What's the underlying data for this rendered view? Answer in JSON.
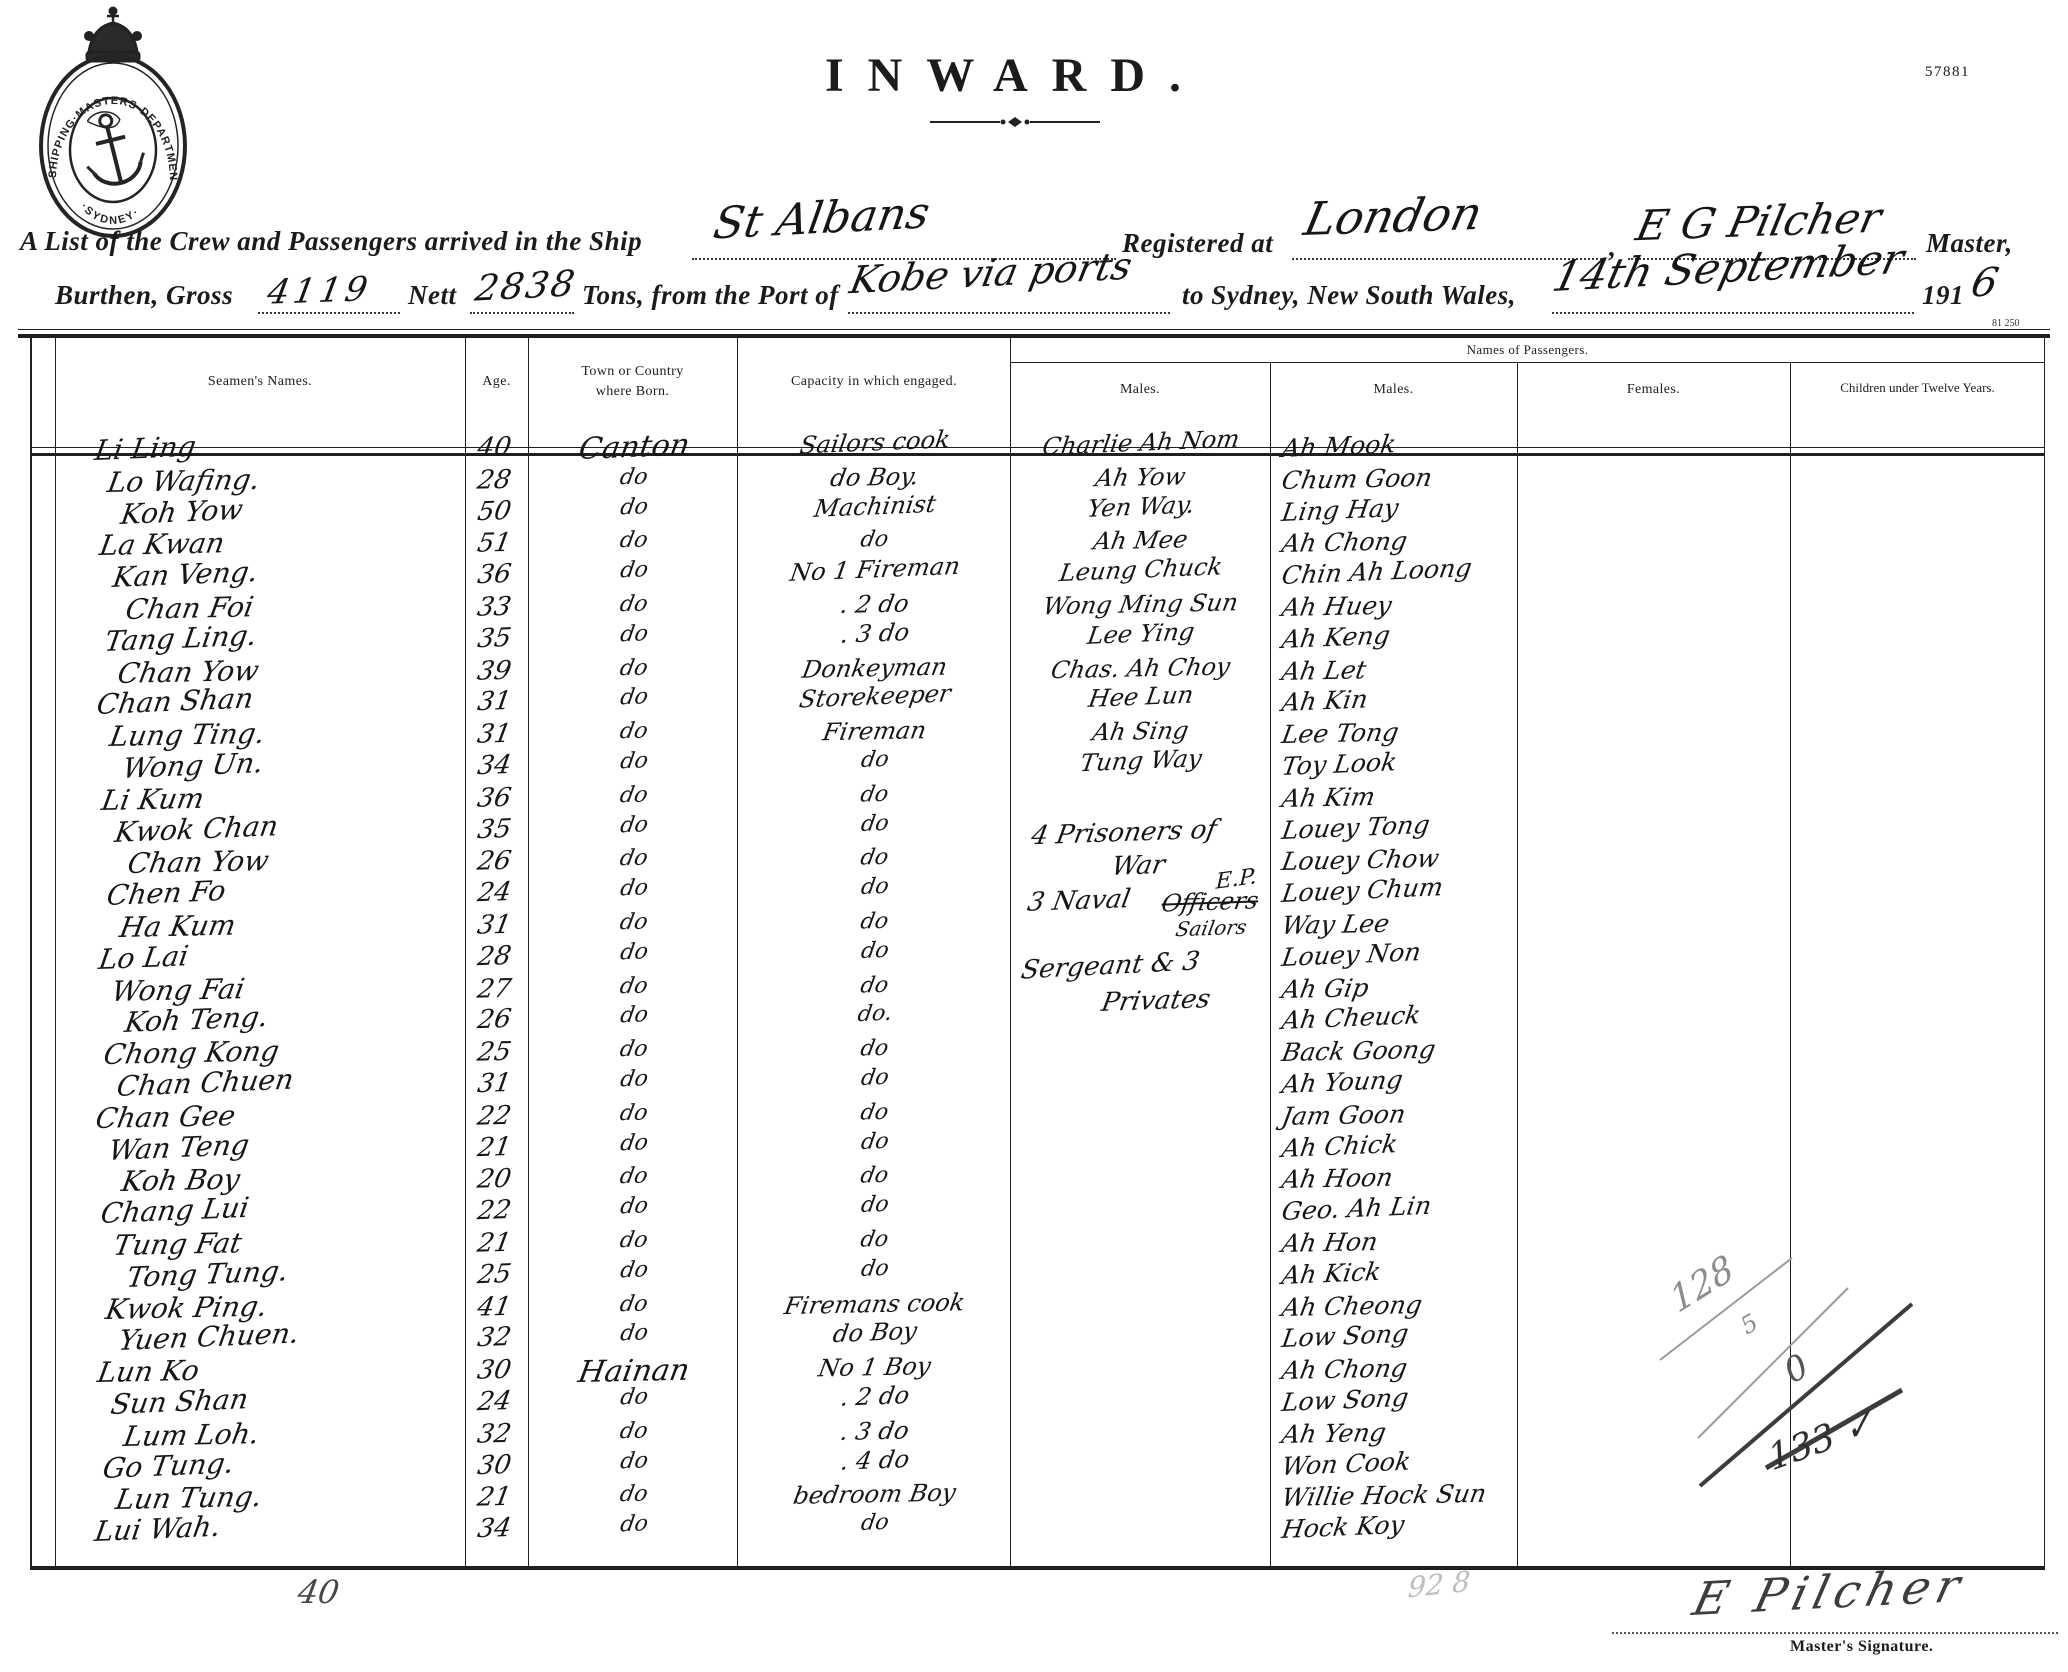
{
  "document": {
    "form_number": "57881",
    "form_code": "81 250",
    "title": "INWARD.",
    "seal": {
      "arc_top": "SHIPPING·MASTERS·DEPARTMENT",
      "arc_bottom": "·SYDNEY·"
    },
    "header": {
      "line1_lead": "A List of the Crew and Passengers arrived in the Ship",
      "ship_name": "St Albans",
      "registered_at_label": "Registered at",
      "registered_at_value": "London",
      "comma": ",",
      "master_name": "E G Pilcher",
      "master_label": "Master,",
      "burthen_label": "Burthen, Gross",
      "gross_tons": "4119",
      "nett_label": "Nett",
      "nett_tons": "2838",
      "tons_from_label": "Tons, from the Port of",
      "port_of_origin": "Kobe via ports",
      "destination_label": "to Sydney, New South Wales,",
      "arrival_date": "14th September",
      "year_printed": "191",
      "year_handwritten": "6"
    }
  },
  "table": {
    "headers": {
      "seamen_names": "Seamen's Names.",
      "age": "Age.",
      "born_l1": "Town or Country",
      "born_l2": "where Born.",
      "capacity": "Capacity in which engaged.",
      "passengers_group": "Names of Passengers.",
      "males1": "Males.",
      "males2": "Males.",
      "females": "Females.",
      "children": "Children under Twelve Years."
    },
    "rows": [
      {
        "name": "Li Ling",
        "age": "40",
        "born": "Canton",
        "capacity": "Sailors cook",
        "male1": "Charlie Ah Nom",
        "male2": "Ah Mook"
      },
      {
        "name": "Lo Wafing.",
        "age": "28",
        "born": "do",
        "capacity": "do Boy.",
        "male1": "Ah Yow",
        "male2": "Chum Goon"
      },
      {
        "name": "Koh Yow",
        "age": "50",
        "born": "do",
        "capacity": "Machinist",
        "male1": "Yen Way.",
        "male2": "Ling Hay"
      },
      {
        "name": "La Kwan",
        "age": "51",
        "born": "do",
        "capacity": "do",
        "male1": "Ah Mee",
        "male2": "Ah Chong"
      },
      {
        "name": "Kan Veng.",
        "age": "36",
        "born": "do",
        "capacity": "No 1 Fireman",
        "male1": "Leung Chuck",
        "male2": "Chin Ah Loong"
      },
      {
        "name": "Chan Foi",
        "age": "33",
        "born": "do",
        "capacity": ". 2    do",
        "male1": "Wong Ming Sun",
        "male2": "Ah Huey"
      },
      {
        "name": "Tang Ling.",
        "age": "35",
        "born": "do",
        "capacity": ". 3    do",
        "male1": "Lee Ying",
        "male2": "Ah Keng"
      },
      {
        "name": "Chan Yow",
        "age": "39",
        "born": "do",
        "capacity": "Donkeyman",
        "male1": "Chas. Ah Choy",
        "male2": "Ah Let"
      },
      {
        "name": "Chan Shan",
        "age": "31",
        "born": "do",
        "capacity": "Storekeeper",
        "male1": "Hee Lun",
        "male2": "Ah Kin"
      },
      {
        "name": "Lung Ting.",
        "age": "31",
        "born": "do",
        "capacity": "Fireman",
        "male1": "Ah Sing",
        "male2": "Lee Tong"
      },
      {
        "name": "Wong Un.",
        "age": "34",
        "born": "do",
        "capacity": "do",
        "male1": "Tung Way",
        "male2": "Toy Look"
      },
      {
        "name": "Li Kum",
        "age": "36",
        "born": "do",
        "capacity": "do",
        "male1": "",
        "male2": "Ah Kim"
      },
      {
        "name": "Kwok Chan",
        "age": "35",
        "born": "do",
        "capacity": "do",
        "male1": "",
        "male2": "Louey Tong"
      },
      {
        "name": "Chan Yow",
        "age": "26",
        "born": "do",
        "capacity": "do",
        "male1": "",
        "male2": "Louey Chow"
      },
      {
        "name": "Chen Fo",
        "age": "24",
        "born": "do",
        "capacity": "do",
        "male1": "",
        "male2": "Louey Chum"
      },
      {
        "name": "Ha Kum",
        "age": "31",
        "born": "do",
        "capacity": "do",
        "male1": "",
        "male2": "Way Lee"
      },
      {
        "name": "Lo Lai",
        "age": "28",
        "born": "do",
        "capacity": "do",
        "male1": "",
        "male2": "Louey Non"
      },
      {
        "name": "Wong Fai",
        "age": "27",
        "born": "do",
        "capacity": "do",
        "male1": "",
        "male2": "Ah Gip"
      },
      {
        "name": "Koh Teng.",
        "age": "26",
        "born": "do",
        "capacity": "do.",
        "male1": "",
        "male2": "Ah Cheuck"
      },
      {
        "name": "Chong Kong",
        "age": "25",
        "born": "do",
        "capacity": "do",
        "male1": "",
        "male2": "Back Goong"
      },
      {
        "name": "Chan Chuen",
        "age": "31",
        "born": "do",
        "capacity": "do",
        "male1": "",
        "male2": "Ah Young"
      },
      {
        "name": "Chan Gee",
        "age": "22",
        "born": "do",
        "capacity": "do",
        "male1": "",
        "male2": "Jam Goon"
      },
      {
        "name": "Wan Teng",
        "age": "21",
        "born": "do",
        "capacity": "do",
        "male1": "",
        "male2": "Ah Chick"
      },
      {
        "name": "Koh Boy",
        "age": "20",
        "born": "do",
        "capacity": "do",
        "male1": "",
        "male2": "Ah Hoon"
      },
      {
        "name": "Chang Lui",
        "age": "22",
        "born": "do",
        "capacity": "do",
        "male1": "",
        "male2": "Geo. Ah Lin"
      },
      {
        "name": "Tung Fat",
        "age": "21",
        "born": "do",
        "capacity": "do",
        "male1": "",
        "male2": "Ah Hon"
      },
      {
        "name": "Tong Tung.",
        "age": "25",
        "born": "do",
        "capacity": "do",
        "male1": "",
        "male2": "Ah Kick"
      },
      {
        "name": "Kwok Ping.",
        "age": "41",
        "born": "do",
        "capacity": "Firemans cook",
        "male1": "",
        "male2": "Ah Cheong"
      },
      {
        "name": "Yuen Chuen.",
        "age": "32",
        "born": "do",
        "capacity": "do  Boy",
        "male1": "",
        "male2": "Low Song"
      },
      {
        "name": "Lun Ko",
        "age": "30",
        "born": "Hainan",
        "capacity": "No 1  Boy",
        "male1": "",
        "male2": "Ah Chong"
      },
      {
        "name": "Sun Shan",
        "age": "24",
        "born": "do",
        "capacity": ". 2    do",
        "male1": "",
        "male2": "Low Song"
      },
      {
        "name": "Lum Loh.",
        "age": "32",
        "born": "do",
        "capacity": ". 3    do",
        "male1": "",
        "male2": "Ah Yeng"
      },
      {
        "name": "Go Tung.",
        "age": "30",
        "born": "do",
        "capacity": ". 4    do",
        "male1": "",
        "male2": "Won Cook"
      },
      {
        "name": "Lun Tung.",
        "age": "21",
        "born": "do",
        "capacity": "bedroom Boy",
        "male1": "",
        "male2": "Willie Hock Sun"
      },
      {
        "name": "Lui Wah.",
        "age": "34",
        "born": "do",
        "capacity": "do",
        "male1": "",
        "male2": "Hock Koy"
      }
    ],
    "passenger_notes": {
      "prisoners_line1": "4  Prisoners of",
      "prisoners_line2": "War",
      "ep": "E.P.",
      "naval_line": "3  Naval",
      "naval_struck": "Officers",
      "naval_sub": "Sailors",
      "sergeant_line1": "Sergeant & 3",
      "sergeant_line2": "Privates"
    },
    "pencil_tallies": {
      "females_count": "128",
      "females_small": "5",
      "zero": "0",
      "total": "133 ✓",
      "crew_total": "40",
      "faint_bottom": "92 8"
    }
  },
  "footer": {
    "signature": "E Pilcher",
    "signature_label": "Master's Signature."
  }
}
